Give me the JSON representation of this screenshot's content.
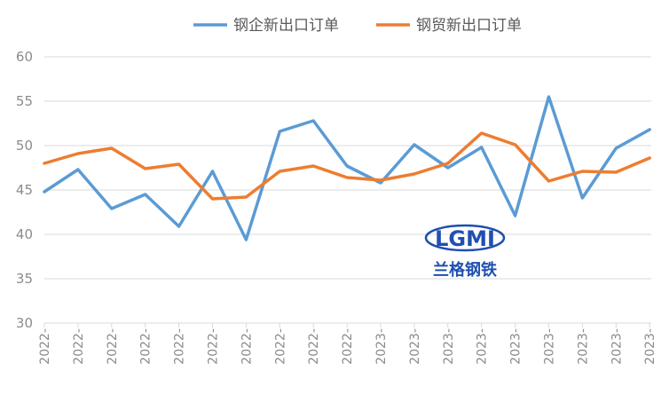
{
  "chart_data": {
    "type": "line",
    "x": [
      "2022-",
      "2022-",
      "2022-",
      "2022-",
      "2022-",
      "2022-",
      "2022-",
      "2022-",
      "2022-",
      "2022-",
      "2023-",
      "2023-",
      "2023-",
      "2023-",
      "2023-",
      "2023-",
      "2023-",
      "2023-",
      "2023-"
    ],
    "series": [
      {
        "name": "钢企新出口订单",
        "color": "#5b9bd5",
        "values": [
          44.8,
          47.3,
          42.9,
          44.5,
          40.9,
          47.1,
          39.4,
          51.6,
          52.8,
          47.7,
          45.8,
          50.1,
          47.5,
          49.8,
          42.1,
          55.5,
          44.1,
          49.7,
          51.8
        ]
      },
      {
        "name": "钢贸新出口订单",
        "color": "#ed7d31",
        "values": [
          48.0,
          49.1,
          49.7,
          47.4,
          47.9,
          44.0,
          44.2,
          47.1,
          47.7,
          46.4,
          46.1,
          46.8,
          48.0,
          51.4,
          50.1,
          46.0,
          47.1,
          47.0,
          48.6
        ]
      }
    ],
    "ylim": [
      30,
      60
    ],
    "yticks": [
      30,
      35,
      40,
      45,
      50,
      55,
      60
    ],
    "grid": true,
    "legend": "top-center"
  },
  "watermark": {
    "logo_text": "LGMI",
    "caption": "兰格钢铁"
  }
}
